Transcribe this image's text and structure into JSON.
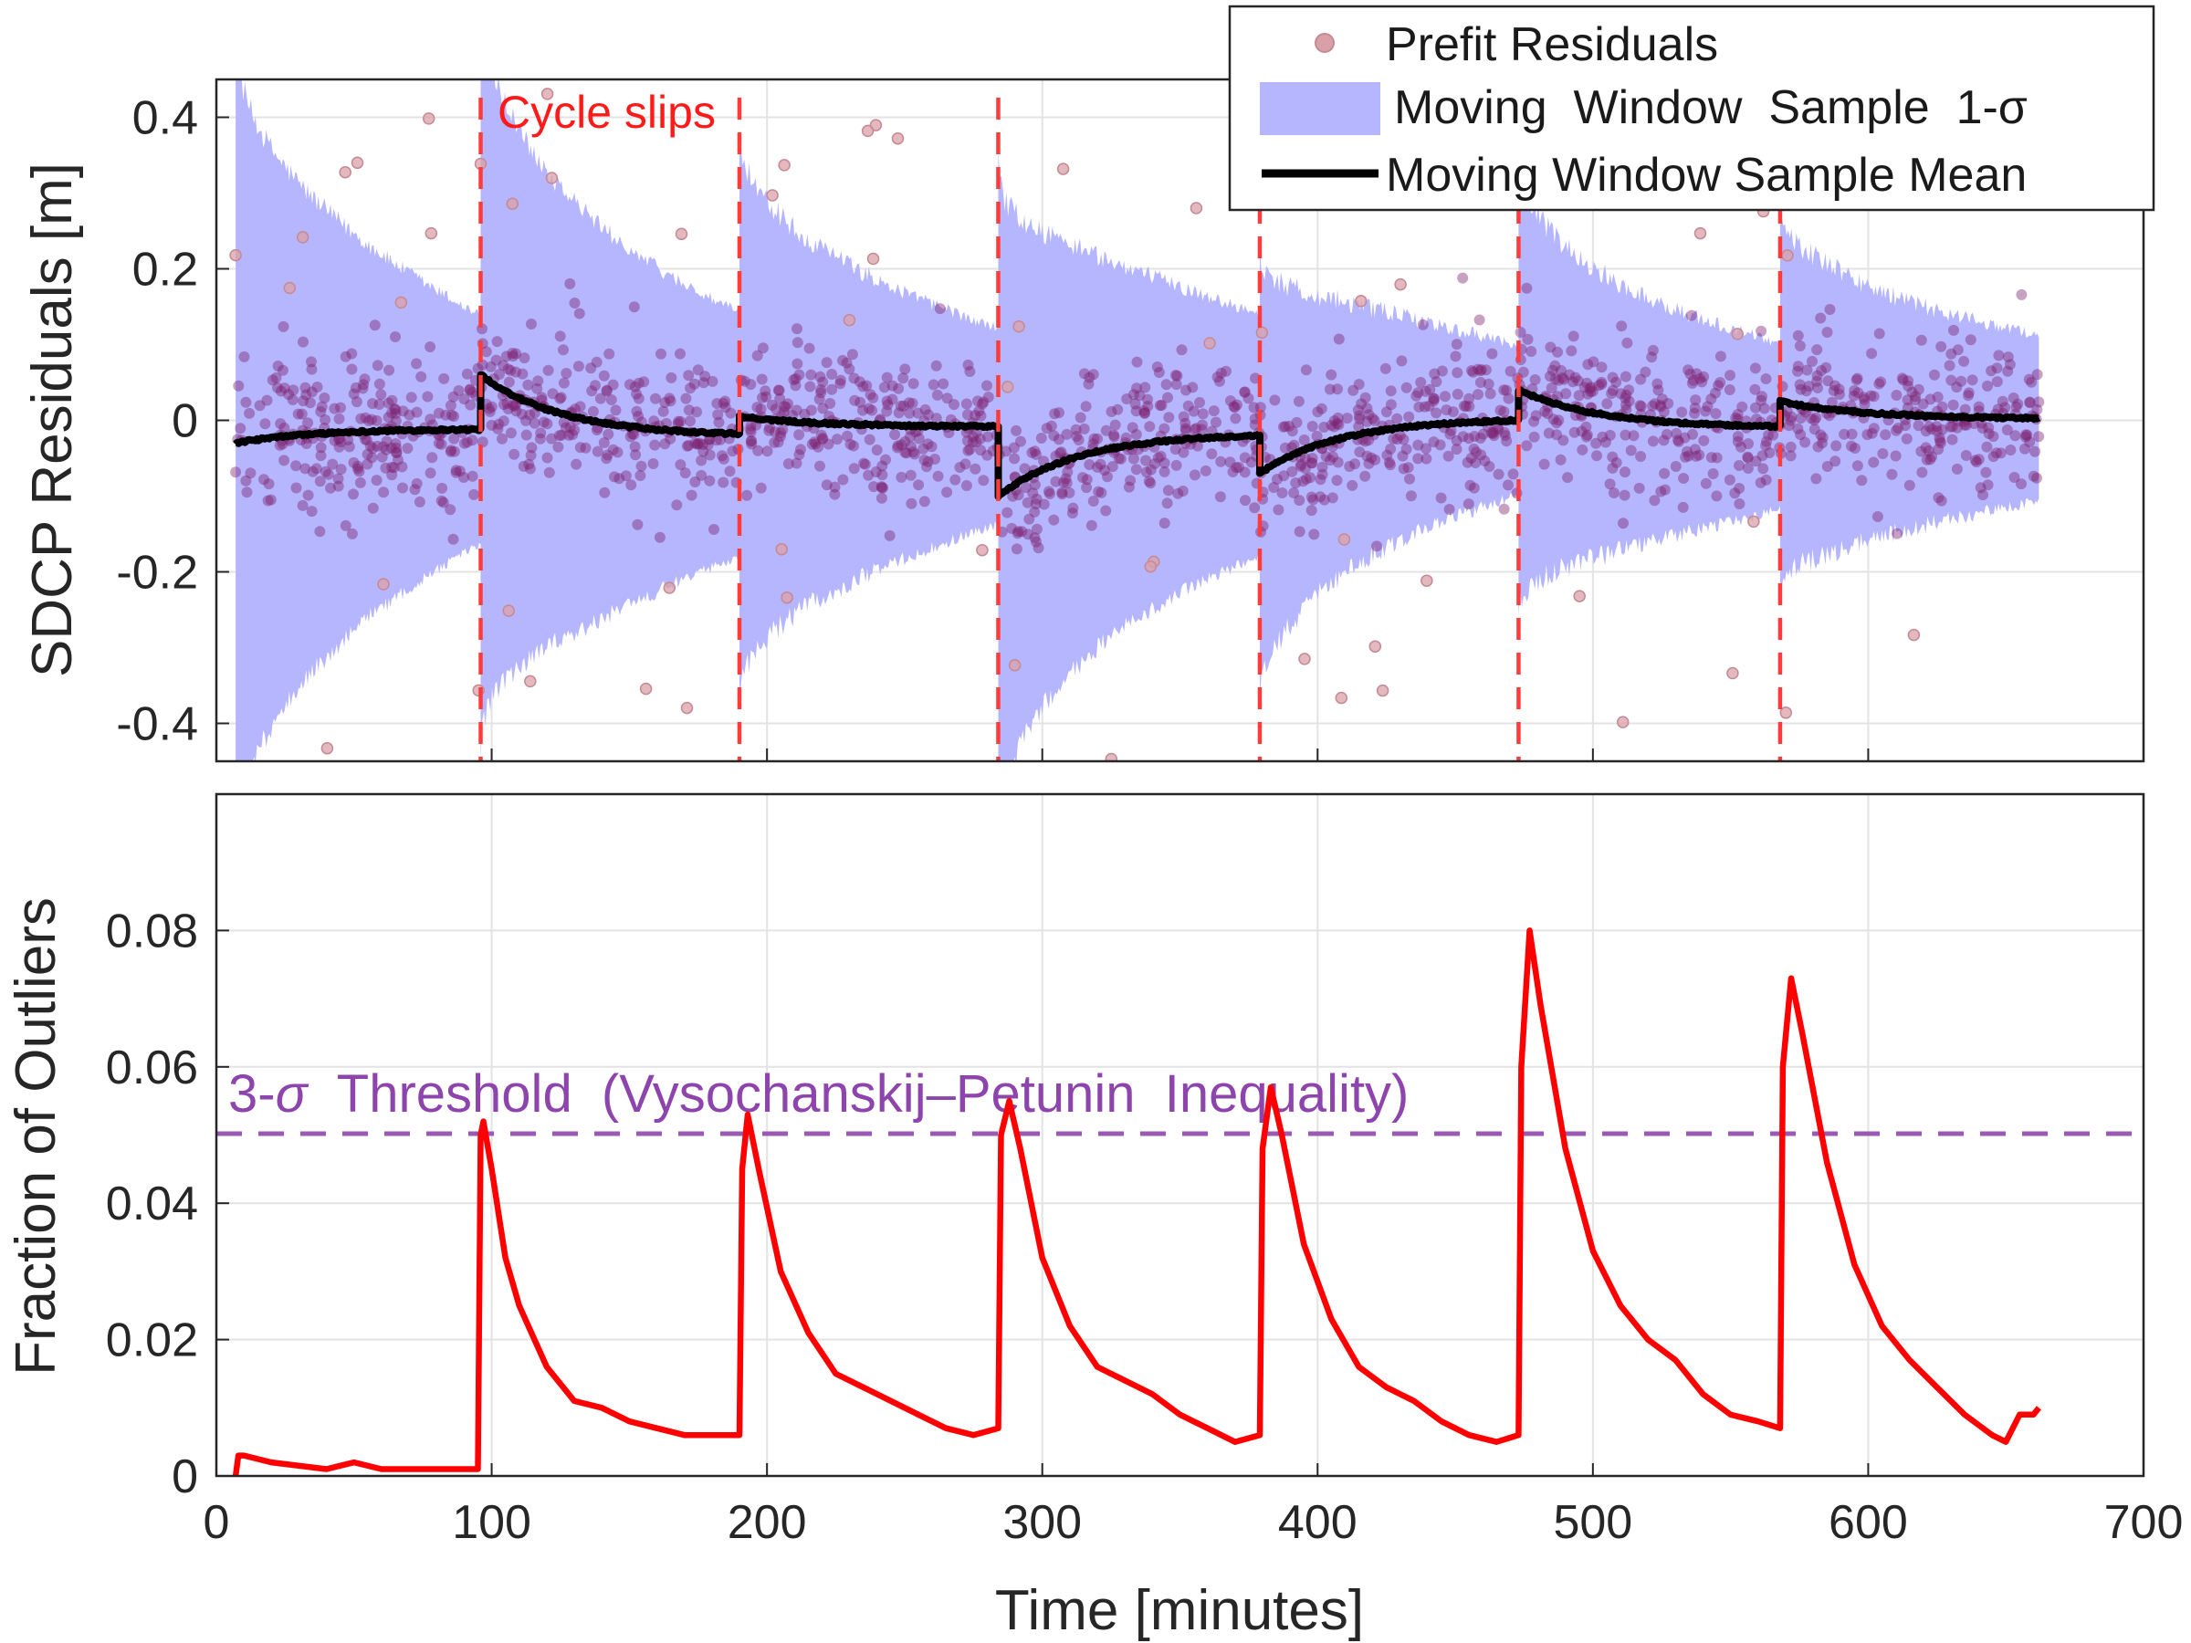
{
  "chart_data": [
    {
      "type": "scatter",
      "panel": "top",
      "ylabel": "SDCP Residuals [m]",
      "xlim": [
        0,
        700
      ],
      "ylim": [
        -0.45,
        0.45
      ],
      "xticks": [
        0,
        100,
        200,
        300,
        400,
        500,
        600,
        700
      ],
      "yticks": [
        -0.4,
        -0.2,
        0,
        0.2,
        0.4
      ],
      "ytick_labels": [
        "-0.4",
        "-0.2",
        "0",
        "0.2",
        "0.4"
      ],
      "grid": true,
      "legend_position": "top-right",
      "legend": [
        "Prefit Residuals",
        "Moving  Window  Sample  1-σ",
        "Moving Window Sample Mean"
      ],
      "annotation": "Cycle slips",
      "data_range": [
        7,
        662
      ],
      "cycle_slips": [
        96,
        190,
        284,
        379,
        473,
        568
      ],
      "segments": [
        {
          "start": 7,
          "end": 96,
          "mean_start": -0.03,
          "mean_end": -0.012,
          "band_start": 0.55,
          "band_end": 0.15
        },
        {
          "start": 96,
          "end": 190,
          "mean_start": 0.06,
          "mean_end": -0.018,
          "band_start": 0.5,
          "band_end": 0.16
        },
        {
          "start": 190,
          "end": 284,
          "mean_start": 0.005,
          "mean_end": -0.008,
          "band_start": 0.38,
          "band_end": 0.13
        },
        {
          "start": 284,
          "end": 379,
          "mean_start": -0.1,
          "mean_end": -0.02,
          "band_start": 0.44,
          "band_end": 0.16
        },
        {
          "start": 379,
          "end": 473,
          "mean_start": -0.07,
          "mean_end": 0.0,
          "band_start": 0.3,
          "band_end": 0.1
        },
        {
          "start": 473,
          "end": 568,
          "mean_start": 0.04,
          "mean_end": -0.008,
          "band_start": 0.3,
          "band_end": 0.11
        },
        {
          "start": 568,
          "end": 662,
          "mean_start": 0.025,
          "mean_end": 0.003,
          "band_start": 0.26,
          "band_end": 0.11
        }
      ],
      "series": [
        {
          "name": "Prefit Residuals",
          "kind": "scatter",
          "spread_sd": 0.05
        },
        {
          "name": "Moving  Window  Sample  1-σ",
          "kind": "band"
        },
        {
          "name": "Moving Window Sample Mean",
          "kind": "line"
        }
      ],
      "colors": {
        "scatter": "#7b1f6e",
        "band": "#b6b6ff",
        "mean": "#000000",
        "slip": "#ff3b3b"
      }
    },
    {
      "type": "line",
      "panel": "bottom",
      "xlabel": "Time [minutes]",
      "ylabel": "Fraction of Outliers",
      "xlim": [
        0,
        700
      ],
      "ylim": [
        0,
        0.1
      ],
      "xticks": [
        0,
        100,
        200,
        300,
        400,
        500,
        600,
        700
      ],
      "yticks": [
        0,
        0.02,
        0.04,
        0.06,
        0.08
      ],
      "ytick_labels": [
        "0",
        "0.02",
        "0.04",
        "0.06",
        "0.08"
      ],
      "grid": true,
      "threshold": {
        "value": 0.0495,
        "label_prefix": "3-",
        "label_sigma": "σ",
        "label_rest": "  Threshold  (Vysochanskij–Petunin  Inequality)",
        "color": "#9b59b6"
      },
      "series": [
        {
          "name": "Fraction of Outliers",
          "color": "#ff0000",
          "x": [
            7,
            8,
            10,
            20,
            40,
            50,
            60,
            80,
            95,
            96,
            97,
            100,
            105,
            110,
            120,
            130,
            140,
            150,
            160,
            170,
            180,
            190,
            191,
            193,
            197,
            205,
            215,
            225,
            235,
            245,
            255,
            265,
            275,
            284,
            285,
            288,
            292,
            300,
            310,
            320,
            330,
            340,
            350,
            360,
            370,
            379,
            380,
            383,
            387,
            395,
            405,
            415,
            425,
            435,
            445,
            455,
            465,
            473,
            474,
            477,
            481,
            490,
            500,
            510,
            520,
            530,
            540,
            550,
            560,
            568,
            569,
            572,
            576,
            585,
            595,
            605,
            615,
            625,
            635,
            645,
            650,
            655,
            660,
            662
          ],
          "y": [
            0.0,
            0.003,
            0.003,
            0.002,
            0.001,
            0.002,
            0.001,
            0.001,
            0.001,
            0.05,
            0.052,
            0.045,
            0.032,
            0.025,
            0.016,
            0.011,
            0.01,
            0.008,
            0.007,
            0.006,
            0.006,
            0.006,
            0.045,
            0.053,
            0.045,
            0.03,
            0.021,
            0.015,
            0.013,
            0.011,
            0.009,
            0.007,
            0.006,
            0.007,
            0.05,
            0.055,
            0.048,
            0.032,
            0.022,
            0.016,
            0.014,
            0.012,
            0.009,
            0.007,
            0.005,
            0.006,
            0.048,
            0.057,
            0.05,
            0.034,
            0.023,
            0.016,
            0.013,
            0.011,
            0.008,
            0.006,
            0.005,
            0.006,
            0.06,
            0.08,
            0.069,
            0.048,
            0.033,
            0.025,
            0.02,
            0.017,
            0.012,
            0.009,
            0.008,
            0.007,
            0.06,
            0.073,
            0.065,
            0.046,
            0.031,
            0.022,
            0.017,
            0.013,
            0.009,
            0.006,
            0.005,
            0.009,
            0.009,
            0.01
          ]
        }
      ]
    }
  ]
}
